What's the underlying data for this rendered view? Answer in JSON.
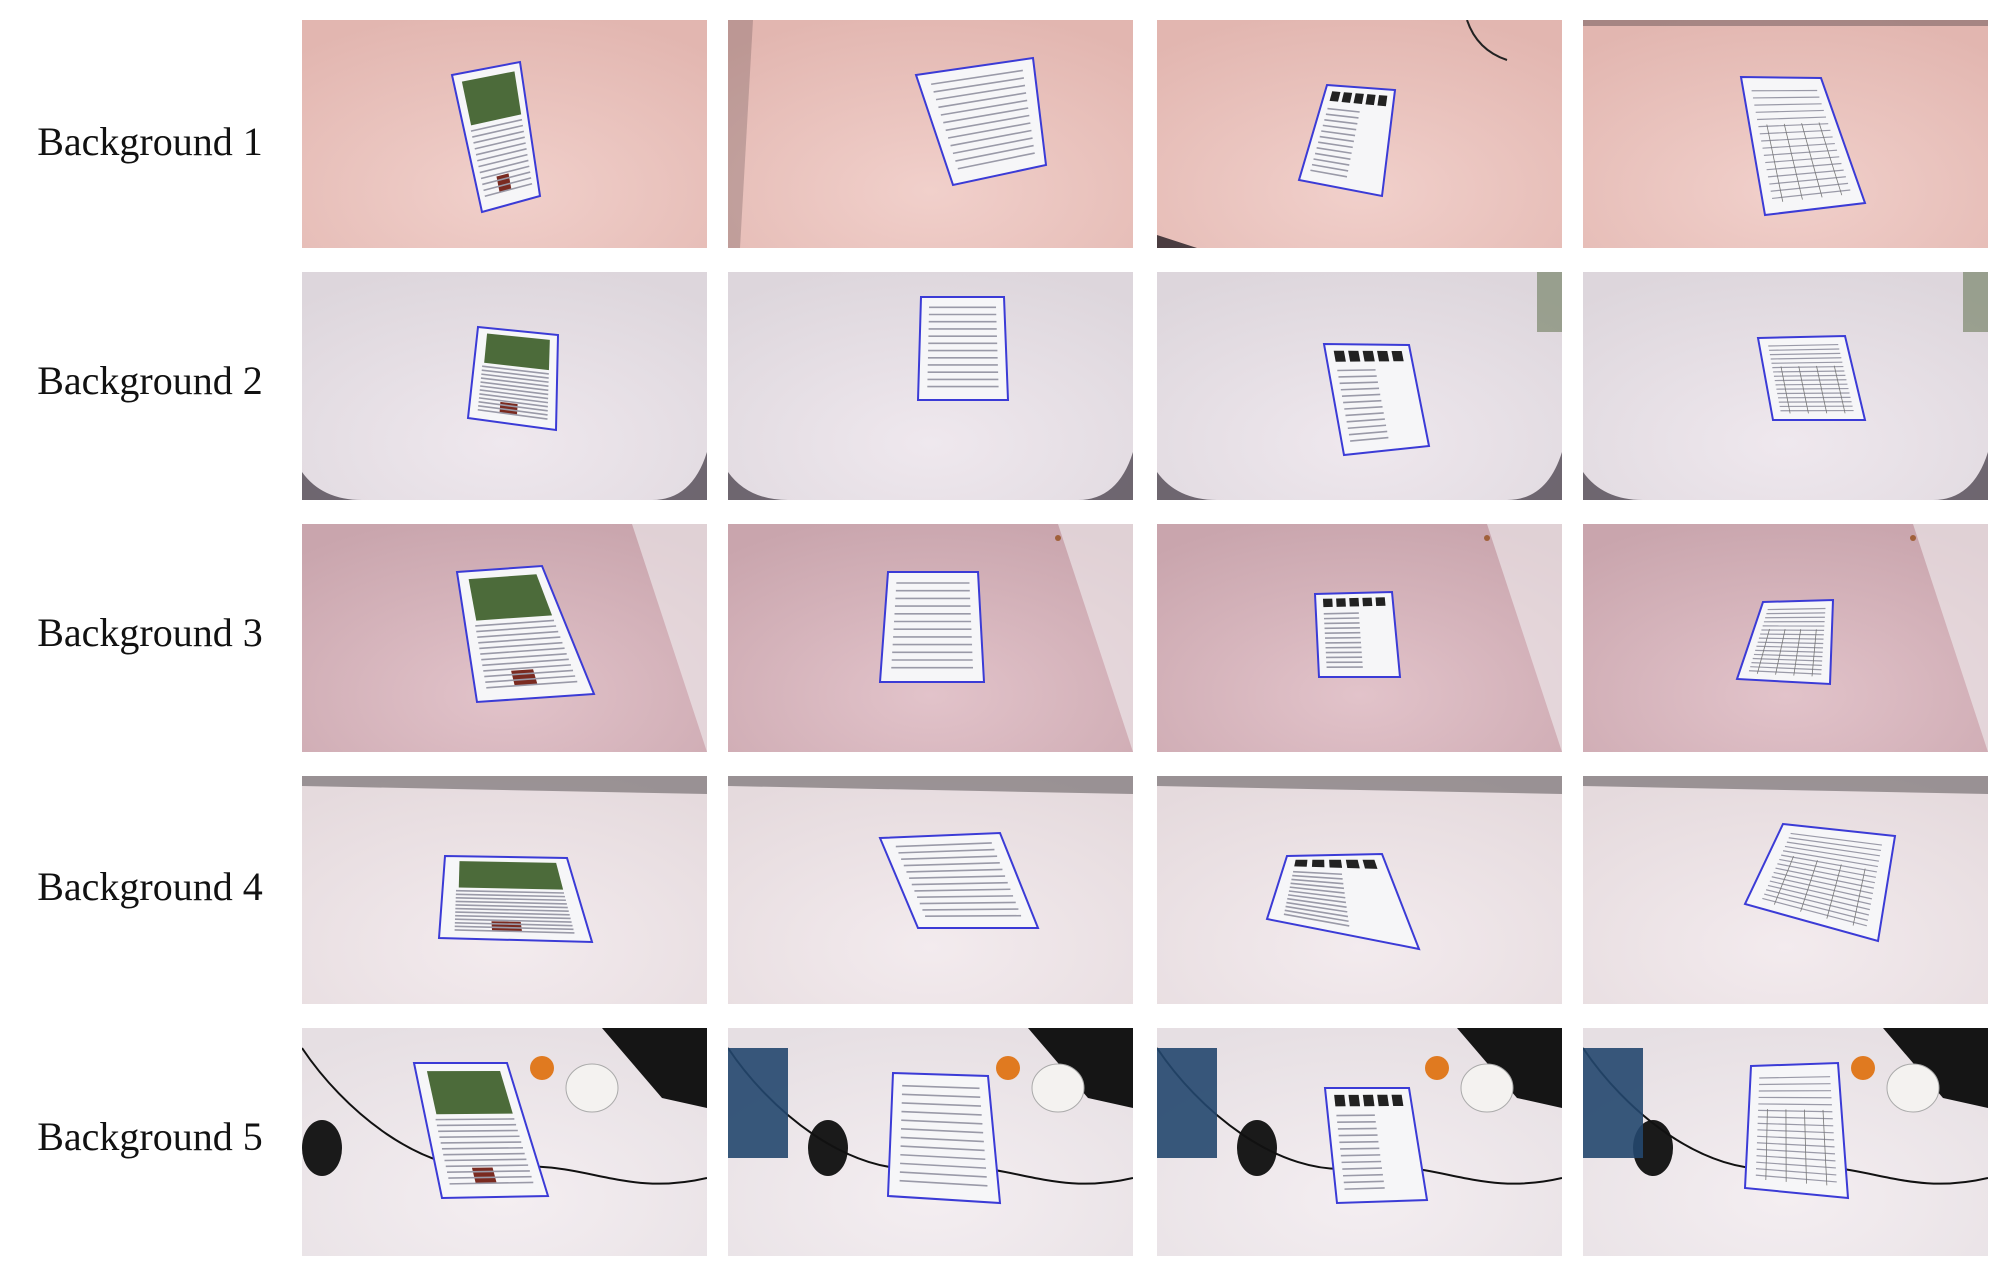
{
  "rows": [
    {
      "label": "Background 1",
      "surface": "#e2b6b0",
      "surface_light": "#f1d0cb",
      "dark": "#4a3c40"
    },
    {
      "label": "Background 2",
      "surface": "#ddd6dc",
      "surface_light": "#efe8ee",
      "dark": "#504852"
    },
    {
      "label": "Background 3",
      "surface": "#c9a5ad",
      "surface_light": "#e2c3ca",
      "dark": "#6b5860"
    },
    {
      "label": "Background 4",
      "surface": "#e5dadd",
      "surface_light": "#f3ebee",
      "dark": "#5b5558"
    },
    {
      "label": "Background 5",
      "surface": "#e6dfe3",
      "surface_light": "#f4eef1",
      "dark": "#151515"
    }
  ],
  "columns": [
    {
      "document": "magazine-page"
    },
    {
      "document": "research-paper"
    },
    {
      "document": "paper-with-figures"
    },
    {
      "document": "table-form"
    }
  ],
  "colors": {
    "outline": "#3b3bd6",
    "page": "#f6f6f8",
    "text": "#9a9aa8",
    "photo": "#4c6b3a"
  }
}
